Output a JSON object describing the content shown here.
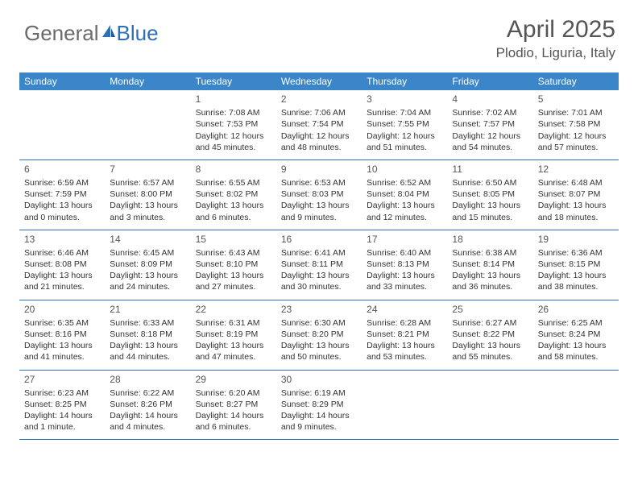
{
  "logo": {
    "part1": "General",
    "part2": "Blue"
  },
  "header": {
    "title": "April 2025",
    "location": "Plodio, Liguria, Italy"
  },
  "style": {
    "header_bg": "#3a86c8",
    "header_text": "#ffffff",
    "border_color": "#2e6fb5",
    "body_text": "#333333",
    "daynum_color": "#555555",
    "logo_gray": "#6b6b6b",
    "logo_blue": "#2e6fb5",
    "background": "#ffffff",
    "title_fontsize": 30,
    "location_fontsize": 17,
    "weekday_fontsize": 12,
    "cell_fontsize": 10.5
  },
  "weekdays": [
    "Sunday",
    "Monday",
    "Tuesday",
    "Wednesday",
    "Thursday",
    "Friday",
    "Saturday"
  ],
  "weeks": [
    [
      null,
      null,
      {
        "n": "1",
        "sr": "Sunrise: 7:08 AM",
        "ss": "Sunset: 7:53 PM",
        "dl": "Daylight: 12 hours and 45 minutes."
      },
      {
        "n": "2",
        "sr": "Sunrise: 7:06 AM",
        "ss": "Sunset: 7:54 PM",
        "dl": "Daylight: 12 hours and 48 minutes."
      },
      {
        "n": "3",
        "sr": "Sunrise: 7:04 AM",
        "ss": "Sunset: 7:55 PM",
        "dl": "Daylight: 12 hours and 51 minutes."
      },
      {
        "n": "4",
        "sr": "Sunrise: 7:02 AM",
        "ss": "Sunset: 7:57 PM",
        "dl": "Daylight: 12 hours and 54 minutes."
      },
      {
        "n": "5",
        "sr": "Sunrise: 7:01 AM",
        "ss": "Sunset: 7:58 PM",
        "dl": "Daylight: 12 hours and 57 minutes."
      }
    ],
    [
      {
        "n": "6",
        "sr": "Sunrise: 6:59 AM",
        "ss": "Sunset: 7:59 PM",
        "dl": "Daylight: 13 hours and 0 minutes."
      },
      {
        "n": "7",
        "sr": "Sunrise: 6:57 AM",
        "ss": "Sunset: 8:00 PM",
        "dl": "Daylight: 13 hours and 3 minutes."
      },
      {
        "n": "8",
        "sr": "Sunrise: 6:55 AM",
        "ss": "Sunset: 8:02 PM",
        "dl": "Daylight: 13 hours and 6 minutes."
      },
      {
        "n": "9",
        "sr": "Sunrise: 6:53 AM",
        "ss": "Sunset: 8:03 PM",
        "dl": "Daylight: 13 hours and 9 minutes."
      },
      {
        "n": "10",
        "sr": "Sunrise: 6:52 AM",
        "ss": "Sunset: 8:04 PM",
        "dl": "Daylight: 13 hours and 12 minutes."
      },
      {
        "n": "11",
        "sr": "Sunrise: 6:50 AM",
        "ss": "Sunset: 8:05 PM",
        "dl": "Daylight: 13 hours and 15 minutes."
      },
      {
        "n": "12",
        "sr": "Sunrise: 6:48 AM",
        "ss": "Sunset: 8:07 PM",
        "dl": "Daylight: 13 hours and 18 minutes."
      }
    ],
    [
      {
        "n": "13",
        "sr": "Sunrise: 6:46 AM",
        "ss": "Sunset: 8:08 PM",
        "dl": "Daylight: 13 hours and 21 minutes."
      },
      {
        "n": "14",
        "sr": "Sunrise: 6:45 AM",
        "ss": "Sunset: 8:09 PM",
        "dl": "Daylight: 13 hours and 24 minutes."
      },
      {
        "n": "15",
        "sr": "Sunrise: 6:43 AM",
        "ss": "Sunset: 8:10 PM",
        "dl": "Daylight: 13 hours and 27 minutes."
      },
      {
        "n": "16",
        "sr": "Sunrise: 6:41 AM",
        "ss": "Sunset: 8:11 PM",
        "dl": "Daylight: 13 hours and 30 minutes."
      },
      {
        "n": "17",
        "sr": "Sunrise: 6:40 AM",
        "ss": "Sunset: 8:13 PM",
        "dl": "Daylight: 13 hours and 33 minutes."
      },
      {
        "n": "18",
        "sr": "Sunrise: 6:38 AM",
        "ss": "Sunset: 8:14 PM",
        "dl": "Daylight: 13 hours and 36 minutes."
      },
      {
        "n": "19",
        "sr": "Sunrise: 6:36 AM",
        "ss": "Sunset: 8:15 PM",
        "dl": "Daylight: 13 hours and 38 minutes."
      }
    ],
    [
      {
        "n": "20",
        "sr": "Sunrise: 6:35 AM",
        "ss": "Sunset: 8:16 PM",
        "dl": "Daylight: 13 hours and 41 minutes."
      },
      {
        "n": "21",
        "sr": "Sunrise: 6:33 AM",
        "ss": "Sunset: 8:18 PM",
        "dl": "Daylight: 13 hours and 44 minutes."
      },
      {
        "n": "22",
        "sr": "Sunrise: 6:31 AM",
        "ss": "Sunset: 8:19 PM",
        "dl": "Daylight: 13 hours and 47 minutes."
      },
      {
        "n": "23",
        "sr": "Sunrise: 6:30 AM",
        "ss": "Sunset: 8:20 PM",
        "dl": "Daylight: 13 hours and 50 minutes."
      },
      {
        "n": "24",
        "sr": "Sunrise: 6:28 AM",
        "ss": "Sunset: 8:21 PM",
        "dl": "Daylight: 13 hours and 53 minutes."
      },
      {
        "n": "25",
        "sr": "Sunrise: 6:27 AM",
        "ss": "Sunset: 8:22 PM",
        "dl": "Daylight: 13 hours and 55 minutes."
      },
      {
        "n": "26",
        "sr": "Sunrise: 6:25 AM",
        "ss": "Sunset: 8:24 PM",
        "dl": "Daylight: 13 hours and 58 minutes."
      }
    ],
    [
      {
        "n": "27",
        "sr": "Sunrise: 6:23 AM",
        "ss": "Sunset: 8:25 PM",
        "dl": "Daylight: 14 hours and 1 minute."
      },
      {
        "n": "28",
        "sr": "Sunrise: 6:22 AM",
        "ss": "Sunset: 8:26 PM",
        "dl": "Daylight: 14 hours and 4 minutes."
      },
      {
        "n": "29",
        "sr": "Sunrise: 6:20 AM",
        "ss": "Sunset: 8:27 PM",
        "dl": "Daylight: 14 hours and 6 minutes."
      },
      {
        "n": "30",
        "sr": "Sunrise: 6:19 AM",
        "ss": "Sunset: 8:29 PM",
        "dl": "Daylight: 14 hours and 9 minutes."
      },
      null,
      null,
      null
    ]
  ]
}
